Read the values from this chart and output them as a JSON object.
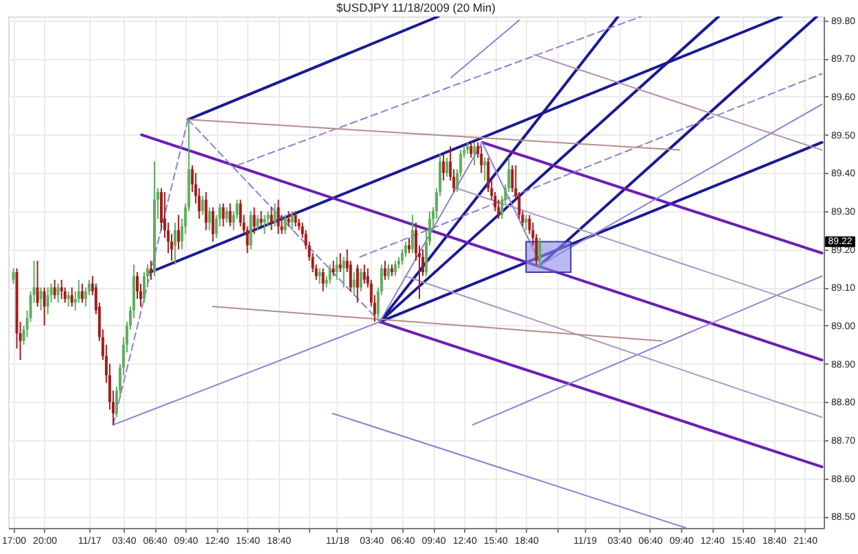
{
  "chart_data": {
    "type": "candlestick",
    "title": "$USDJPY  11/18/2009 (20 Min)",
    "x": [
      "2009-11-16T17:00",
      "2009-11-16T17:20",
      "2009-11-16T17:40",
      "2009-11-16T18:00",
      "2009-11-16T18:20",
      "2009-11-16T18:40",
      "2009-11-16T19:00",
      "2009-11-16T19:20",
      "2009-11-16T19:40",
      "2009-11-16T20:00",
      "2009-11-16T20:20",
      "2009-11-16T20:40",
      "2009-11-16T21:00",
      "2009-11-16T21:20",
      "2009-11-16T21:40",
      "2009-11-16T22:00",
      "2009-11-16T22:20",
      "2009-11-16T22:40",
      "2009-11-16T23:00",
      "2009-11-16T23:20",
      "2009-11-16T23:40",
      "2009-11-17T00:00",
      "2009-11-17T00:20",
      "2009-11-17T00:40",
      "2009-11-17T01:00",
      "2009-11-17T01:20",
      "2009-11-17T01:40",
      "2009-11-17T02:00",
      "2009-11-17T02:20",
      "2009-11-17T02:40",
      "2009-11-17T03:00",
      "2009-11-17T03:20",
      "2009-11-17T03:40",
      "2009-11-17T04:00",
      "2009-11-17T04:20",
      "2009-11-17T04:40",
      "2009-11-17T05:00",
      "2009-11-17T05:20",
      "2009-11-17T05:40",
      "2009-11-17T06:00",
      "2009-11-17T06:20",
      "2009-11-17T06:40",
      "2009-11-17T07:00",
      "2009-11-17T07:20",
      "2009-11-17T07:40",
      "2009-11-17T08:00",
      "2009-11-17T08:20",
      "2009-11-17T08:40",
      "2009-11-17T09:00",
      "2009-11-17T09:20",
      "2009-11-17T09:40",
      "2009-11-17T10:00",
      "2009-11-17T10:20",
      "2009-11-17T10:40",
      "2009-11-17T11:00",
      "2009-11-17T11:20",
      "2009-11-17T11:40",
      "2009-11-17T12:00",
      "2009-11-17T12:20",
      "2009-11-17T12:40",
      "2009-11-17T13:00",
      "2009-11-17T13:20",
      "2009-11-17T13:40",
      "2009-11-17T14:00",
      "2009-11-17T14:20",
      "2009-11-17T14:40",
      "2009-11-17T15:00",
      "2009-11-17T15:20",
      "2009-11-17T15:40",
      "2009-11-17T16:00",
      "2009-11-17T16:20",
      "2009-11-17T16:40",
      "2009-11-17T17:00",
      "2009-11-17T17:20",
      "2009-11-17T17:40",
      "2009-11-17T18:00",
      "2009-11-17T18:20",
      "2009-11-17T18:40",
      "2009-11-17T19:00",
      "2009-11-17T19:20",
      "2009-11-17T19:40",
      "2009-11-17T20:00",
      "2009-11-17T20:20",
      "2009-11-17T20:40",
      "2009-11-17T21:00",
      "2009-11-17T21:20",
      "2009-11-17T21:40",
      "2009-11-17T22:00",
      "2009-11-17T22:20",
      "2009-11-17T22:40",
      "2009-11-17T23:00",
      "2009-11-17T23:20",
      "2009-11-17T23:40",
      "2009-11-18T00:00",
      "2009-11-18T00:20",
      "2009-11-18T00:40",
      "2009-11-18T01:00",
      "2009-11-18T01:20",
      "2009-11-18T01:40",
      "2009-11-18T02:00",
      "2009-11-18T02:20",
      "2009-11-18T02:40",
      "2009-11-18T03:00",
      "2009-11-18T03:20",
      "2009-11-18T03:40",
      "2009-11-18T04:00",
      "2009-11-18T04:20",
      "2009-11-18T04:40",
      "2009-11-18T05:00",
      "2009-11-18T05:20",
      "2009-11-18T05:40",
      "2009-11-18T06:00",
      "2009-11-18T06:20",
      "2009-11-18T06:40",
      "2009-11-18T07:00",
      "2009-11-18T07:20",
      "2009-11-18T07:40",
      "2009-11-18T08:00",
      "2009-11-18T08:20",
      "2009-11-18T08:40",
      "2009-11-18T09:00",
      "2009-11-18T09:20",
      "2009-11-18T09:40",
      "2009-11-18T10:00",
      "2009-11-18T10:20",
      "2009-11-18T10:40",
      "2009-11-18T11:00",
      "2009-11-18T11:20",
      "2009-11-18T11:40",
      "2009-11-18T12:00",
      "2009-11-18T12:20",
      "2009-11-18T12:40",
      "2009-11-18T13:00",
      "2009-11-18T13:20",
      "2009-11-18T13:40",
      "2009-11-18T14:00",
      "2009-11-18T14:20",
      "2009-11-18T14:40",
      "2009-11-18T15:00",
      "2009-11-18T15:20",
      "2009-11-18T15:40",
      "2009-11-18T16:00",
      "2009-11-18T16:20",
      "2009-11-18T16:40",
      "2009-11-18T17:00",
      "2009-11-18T17:20",
      "2009-11-18T17:40",
      "2009-11-18T18:00",
      "2009-11-18T18:20",
      "2009-11-18T18:40",
      "2009-11-18T19:00",
      "2009-11-18T19:20",
      "2009-11-18T19:40",
      "2009-11-18T20:00"
    ],
    "ohlc": [
      [
        89.12,
        89.15,
        89.11,
        89.14
      ],
      [
        89.14,
        89.15,
        88.94,
        88.98
      ],
      [
        88.98,
        89.01,
        88.91,
        88.96
      ],
      [
        88.96,
        89.0,
        88.95,
        88.99
      ],
      [
        88.99,
        89.04,
        88.97,
        89.02
      ],
      [
        89.02,
        89.09,
        89.01,
        89.08
      ],
      [
        89.08,
        89.17,
        89.06,
        89.1
      ],
      [
        89.1,
        89.17,
        89.05,
        89.06
      ],
      [
        89.07,
        89.1,
        89.04,
        89.09
      ],
      [
        89.09,
        89.1,
        89.0,
        89.05
      ],
      [
        89.05,
        89.1,
        89.03,
        89.08
      ],
      [
        89.08,
        89.11,
        89.06,
        89.1
      ],
      [
        89.1,
        89.12,
        89.07,
        89.08
      ],
      [
        89.08,
        89.11,
        89.06,
        89.1
      ],
      [
        89.1,
        89.12,
        89.07,
        89.09
      ],
      [
        89.09,
        89.1,
        89.06,
        89.07
      ],
      [
        89.07,
        89.09,
        89.05,
        89.08
      ],
      [
        89.08,
        89.1,
        89.05,
        89.06
      ],
      [
        89.06,
        89.09,
        89.04,
        89.07
      ],
      [
        89.07,
        89.12,
        89.06,
        89.09
      ],
      [
        89.09,
        89.11,
        89.06,
        89.07
      ],
      [
        89.07,
        89.1,
        89.05,
        89.09
      ],
      [
        89.09,
        89.12,
        89.08,
        89.11
      ],
      [
        89.11,
        89.13,
        89.08,
        89.09
      ],
      [
        89.1,
        89.11,
        89.03,
        89.04
      ],
      [
        89.05,
        89.06,
        88.96,
        88.97
      ],
      [
        88.97,
        88.99,
        88.91,
        88.92
      ],
      [
        88.92,
        88.95,
        88.85,
        88.87
      ],
      [
        88.87,
        88.9,
        88.78,
        88.8
      ],
      [
        88.8,
        88.83,
        88.74,
        88.77
      ],
      [
        88.77,
        88.84,
        88.76,
        88.83
      ],
      [
        88.83,
        88.9,
        88.81,
        88.89
      ],
      [
        88.89,
        88.97,
        88.87,
        88.95
      ],
      [
        88.95,
        89.01,
        88.93,
        89.0
      ],
      [
        89.0,
        89.05,
        88.99,
        89.04
      ],
      [
        89.04,
        89.16,
        89.02,
        89.13
      ],
      [
        89.13,
        89.14,
        89.07,
        89.09
      ],
      [
        89.09,
        89.11,
        89.05,
        89.07
      ],
      [
        89.07,
        89.14,
        89.06,
        89.13
      ],
      [
        89.13,
        89.16,
        89.1,
        89.15
      ],
      [
        89.15,
        89.17,
        89.12,
        89.14
      ],
      [
        89.14,
        89.43,
        89.13,
        89.33
      ],
      [
        89.33,
        89.36,
        89.28,
        89.35
      ],
      [
        89.35,
        89.36,
        89.25,
        89.27
      ],
      [
        89.28,
        89.35,
        89.23,
        89.25
      ],
      [
        89.25,
        89.27,
        89.19,
        89.22
      ],
      [
        89.22,
        89.24,
        89.17,
        89.2
      ],
      [
        89.21,
        89.27,
        89.16,
        89.25
      ],
      [
        89.25,
        89.29,
        89.2,
        89.22
      ],
      [
        89.22,
        89.28,
        89.2,
        89.26
      ],
      [
        89.26,
        89.32,
        89.24,
        89.31
      ],
      [
        89.31,
        89.54,
        89.3,
        89.41
      ],
      [
        89.41,
        89.42,
        89.35,
        89.37
      ],
      [
        89.37,
        89.4,
        89.32,
        89.34
      ],
      [
        89.34,
        89.36,
        89.28,
        89.3
      ],
      [
        89.3,
        89.34,
        89.29,
        89.33
      ],
      [
        89.33,
        89.35,
        89.25,
        89.27
      ],
      [
        89.27,
        89.31,
        89.25,
        89.3
      ],
      [
        89.3,
        89.31,
        89.22,
        89.24
      ],
      [
        89.24,
        89.29,
        89.23,
        89.28
      ],
      [
        89.28,
        89.32,
        89.26,
        89.31
      ],
      [
        89.31,
        89.32,
        89.26,
        89.28
      ],
      [
        89.28,
        89.31,
        89.27,
        89.3
      ],
      [
        89.3,
        89.32,
        89.26,
        89.27
      ],
      [
        89.27,
        89.3,
        89.25,
        89.29
      ],
      [
        89.29,
        89.33,
        89.28,
        89.32
      ],
      [
        89.32,
        89.33,
        89.26,
        89.27
      ],
      [
        89.27,
        89.29,
        89.24,
        89.25
      ],
      [
        89.25,
        89.26,
        89.19,
        89.21
      ],
      [
        89.21,
        89.3,
        89.2,
        89.29
      ],
      [
        89.29,
        89.31,
        89.24,
        89.26
      ],
      [
        89.26,
        89.29,
        89.25,
        89.28
      ],
      [
        89.28,
        89.3,
        89.26,
        89.27
      ],
      [
        89.27,
        89.29,
        89.24,
        89.28
      ],
      [
        89.28,
        89.3,
        89.26,
        89.29
      ],
      [
        89.29,
        89.31,
        89.25,
        89.27
      ],
      [
        89.27,
        89.32,
        89.26,
        89.3
      ],
      [
        89.31,
        89.33,
        89.24,
        89.26
      ],
      [
        89.26,
        89.29,
        89.24,
        89.25
      ],
      [
        89.25,
        89.29,
        89.24,
        89.28
      ],
      [
        89.28,
        89.3,
        89.26,
        89.27
      ],
      [
        89.27,
        89.3,
        89.25,
        89.29
      ],
      [
        89.29,
        89.3,
        89.26,
        89.27
      ],
      [
        89.27,
        89.28,
        89.25,
        89.26
      ],
      [
        89.26,
        89.27,
        89.23,
        89.24
      ],
      [
        89.24,
        89.25,
        89.2,
        89.21
      ],
      [
        89.21,
        89.22,
        89.17,
        89.18
      ],
      [
        89.18,
        89.19,
        89.14,
        89.15
      ],
      [
        89.15,
        89.16,
        89.12,
        89.13
      ],
      [
        89.13,
        89.15,
        89.11,
        89.14
      ],
      [
        89.14,
        89.15,
        89.09,
        89.11
      ],
      [
        89.11,
        89.13,
        89.1,
        89.12
      ],
      [
        89.12,
        89.16,
        89.11,
        89.15
      ],
      [
        89.15,
        89.17,
        89.13,
        89.14
      ],
      [
        89.14,
        89.18,
        89.12,
        89.16
      ],
      [
        89.16,
        89.19,
        89.14,
        89.15
      ],
      [
        89.15,
        89.18,
        89.1,
        89.17
      ],
      [
        89.17,
        89.2,
        89.14,
        89.15
      ],
      [
        89.16,
        89.17,
        89.09,
        89.1
      ],
      [
        89.1,
        89.14,
        89.08,
        89.12
      ],
      [
        89.15,
        89.16,
        89.06,
        89.1
      ],
      [
        89.1,
        89.15,
        89.09,
        89.14
      ],
      [
        89.14,
        89.16,
        89.11,
        89.12
      ],
      [
        89.13,
        89.15,
        89.1,
        89.11
      ],
      [
        89.11,
        89.12,
        89.05,
        89.06
      ],
      [
        89.06,
        89.08,
        89.01,
        89.03
      ],
      [
        89.03,
        89.1,
        89.02,
        89.09
      ],
      [
        89.09,
        89.16,
        89.08,
        89.15
      ],
      [
        89.15,
        89.17,
        89.12,
        89.13
      ],
      [
        89.13,
        89.16,
        89.12,
        89.15
      ],
      [
        89.15,
        89.16,
        89.13,
        89.14
      ],
      [
        89.14,
        89.17,
        89.13,
        89.16
      ],
      [
        89.16,
        89.18,
        89.15,
        89.17
      ],
      [
        89.17,
        89.2,
        89.16,
        89.19
      ],
      [
        89.19,
        89.22,
        89.18,
        89.21
      ],
      [
        89.21,
        89.23,
        89.19,
        89.2
      ],
      [
        89.2,
        89.29,
        89.19,
        89.25
      ],
      [
        89.25,
        89.27,
        89.17,
        89.19
      ],
      [
        89.19,
        89.21,
        89.07,
        89.18
      ],
      [
        89.18,
        89.2,
        89.13,
        89.14
      ],
      [
        89.14,
        89.25,
        89.13,
        89.22
      ],
      [
        89.22,
        89.3,
        89.21,
        89.28
      ],
      [
        89.28,
        89.31,
        89.25,
        89.3
      ],
      [
        89.3,
        89.36,
        89.28,
        89.35
      ],
      [
        89.35,
        89.45,
        89.34,
        89.43
      ],
      [
        89.43,
        89.45,
        89.38,
        89.4
      ],
      [
        89.4,
        89.44,
        89.39,
        89.43
      ],
      [
        89.43,
        89.47,
        89.38,
        89.39
      ],
      [
        89.39,
        89.41,
        89.35,
        89.36
      ],
      [
        89.36,
        89.41,
        89.35,
        89.4
      ],
      [
        89.4,
        89.46,
        89.39,
        89.45
      ],
      [
        89.45,
        89.47,
        89.44,
        89.46
      ],
      [
        89.46,
        89.48,
        89.45,
        89.47
      ],
      [
        89.47,
        89.48,
        89.44,
        89.45
      ],
      [
        89.45,
        89.48,
        89.42,
        89.47
      ],
      [
        89.47,
        89.48,
        89.44,
        89.45
      ],
      [
        89.45,
        89.47,
        89.4,
        89.42
      ],
      [
        89.42,
        89.44,
        89.38,
        89.43
      ],
      [
        89.43,
        89.44,
        89.35,
        89.36
      ],
      [
        89.36,
        89.38,
        89.33,
        89.34
      ],
      [
        89.34,
        89.35,
        89.3,
        89.31
      ],
      [
        89.31,
        89.33,
        89.28,
        89.29
      ],
      [
        89.29,
        89.34,
        89.28,
        89.33
      ],
      [
        89.33,
        89.37,
        89.32,
        89.36
      ],
      [
        89.36,
        89.44,
        89.35,
        89.41
      ],
      [
        89.41,
        89.42,
        89.35,
        89.36
      ],
      [
        89.36,
        89.42,
        89.33,
        89.34
      ],
      [
        89.34,
        89.35,
        89.28,
        89.29
      ],
      [
        89.29,
        89.3,
        89.26,
        89.27
      ],
      [
        89.27,
        89.29,
        89.25,
        89.28
      ],
      [
        89.28,
        89.29,
        89.24,
        89.25
      ],
      [
        89.25,
        89.27,
        89.21,
        89.23
      ],
      [
        89.23,
        89.24,
        89.16,
        89.17
      ],
      [
        89.17,
        89.23,
        89.15,
        89.22
      ]
    ],
    "colors": [
      "#5fae5f",
      "#a41c1c",
      "#a41c1c",
      "#5fae5f",
      "#5fae5f",
      "#5fae5f",
      "#5fae5f",
      "#a41c1c",
      "#5fae5f",
      "#a41c1c",
      "#5fae5f",
      "#5fae5f",
      "#a41c1c",
      "#5fae5f",
      "#a41c1c",
      "#a41c1c",
      "#5fae5f",
      "#a41c1c",
      "#5fae5f",
      "#5fae5f",
      "#a41c1c",
      "#5fae5f",
      "#5fae5f",
      "#a41c1c",
      "#a41c1c",
      "#a41c1c",
      "#a41c1c",
      "#a41c1c",
      "#a41c1c",
      "#a41c1c",
      "#5fae5f",
      "#5fae5f",
      "#5fae5f",
      "#5fae5f",
      "#5fae5f",
      "#5fae5f",
      "#a41c1c",
      "#a41c1c",
      "#5fae5f",
      "#5fae5f",
      "#a41c1c",
      "#5fae5f",
      "#5fae5f",
      "#a41c1c",
      "#a41c1c",
      "#a41c1c",
      "#a41c1c",
      "#5fae5f",
      "#a41c1c",
      "#5fae5f",
      "#5fae5f",
      "#5fae5f",
      "#a41c1c",
      "#a41c1c",
      "#a41c1c",
      "#5fae5f",
      "#a41c1c",
      "#5fae5f",
      "#a41c1c",
      "#5fae5f",
      "#5fae5f",
      "#a41c1c",
      "#5fae5f",
      "#a41c1c",
      "#5fae5f",
      "#5fae5f",
      "#a41c1c",
      "#a41c1c",
      "#a41c1c",
      "#5fae5f",
      "#a41c1c",
      "#5fae5f",
      "#a41c1c",
      "#5fae5f",
      "#5fae5f",
      "#a41c1c",
      "#5fae5f",
      "#a41c1c",
      "#a41c1c",
      "#5fae5f",
      "#a41c1c",
      "#5fae5f",
      "#a41c1c",
      "#a41c1c",
      "#a41c1c",
      "#a41c1c",
      "#a41c1c",
      "#a41c1c",
      "#a41c1c",
      "#5fae5f",
      "#a41c1c",
      "#5fae5f",
      "#5fae5f",
      "#a41c1c",
      "#5fae5f",
      "#a41c1c",
      "#5fae5f",
      "#a41c1c",
      "#a41c1c",
      "#5fae5f",
      "#a41c1c",
      "#5fae5f",
      "#a41c1c",
      "#a41c1c",
      "#a41c1c",
      "#a41c1c",
      "#5fae5f",
      "#5fae5f",
      "#a41c1c",
      "#5fae5f",
      "#a41c1c",
      "#5fae5f",
      "#5fae5f",
      "#5fae5f",
      "#5fae5f",
      "#a41c1c",
      "#5fae5f",
      "#a41c1c",
      "#a41c1c",
      "#a41c1c",
      "#5fae5f",
      "#5fae5f",
      "#5fae5f",
      "#5fae5f",
      "#5fae5f",
      "#a41c1c",
      "#5fae5f",
      "#a41c1c",
      "#a41c1c",
      "#5fae5f",
      "#5fae5f",
      "#5fae5f",
      "#5fae5f",
      "#a41c1c",
      "#5fae5f",
      "#a41c1c",
      "#a41c1c",
      "#5fae5f",
      "#a41c1c",
      "#a41c1c",
      "#a41c1c",
      "#a41c1c",
      "#5fae5f",
      "#5fae5f",
      "#5fae5f",
      "#a41c1c",
      "#a41c1c",
      "#a41c1c",
      "#a41c1c",
      "#5fae5f",
      "#a41c1c",
      "#a41c1c",
      "#a41c1c",
      "#5fae5f"
    ],
    "series": [
      {
        "type": "line",
        "color": "#1a1a96",
        "x": [
          "2009-11-17T09:55",
          "2009-11-18T10:10"
        ],
        "values": [
          89.54,
          89.81
        ]
      },
      {
        "type": "line",
        "color": "#1a1a96",
        "x": [
          "2009-11-17T06:15",
          "2009-11-19T19:25"
        ],
        "values": [
          89.14,
          89.81
        ]
      },
      {
        "type": "line",
        "color": "#1a1a96",
        "x": [
          "2009-11-18T04:30",
          "2009-11-19T23:20"
        ],
        "values": [
          89.01,
          89.48
        ]
      },
      {
        "type": "line",
        "color": "#1a1a96",
        "x": [
          "2009-11-18T04:30",
          "2009-11-19T03:35"
        ],
        "values": [
          89.01,
          89.81
        ]
      },
      {
        "type": "line",
        "color": "#1a1a96",
        "x": [
          "2009-11-18T04:30",
          "2009-11-19T13:20"
        ],
        "values": [
          89.01,
          89.81
        ]
      },
      {
        "type": "line",
        "color": "#1a1a96",
        "x": [
          "2009-11-18T20:05",
          "2009-11-19T22:50"
        ],
        "values": [
          89.16,
          89.81
        ]
      },
      {
        "type": "line",
        "color": "#6a1fb5",
        "x": [
          "2009-11-17T05:25",
          "2009-11-19T23:20"
        ],
        "values": [
          89.5,
          88.91
        ]
      },
      {
        "type": "line",
        "color": "#6a1fb5",
        "x": [
          "2009-11-18T14:25",
          "2009-11-19T23:20"
        ],
        "values": [
          89.48,
          89.19
        ]
      },
      {
        "type": "line",
        "color": "#6a1fb5",
        "x": [
          "2009-11-18T04:30",
          "2009-11-19T23:20"
        ],
        "values": [
          89.01,
          88.63
        ]
      },
      {
        "type": "line",
        "color": "#8a80d8",
        "line_style": "dashed",
        "x": [
          "2009-11-17T02:40",
          "2009-11-17T09:55"
        ],
        "values": [
          88.74,
          89.54
        ]
      },
      {
        "type": "line",
        "color": "#8a80d8",
        "x": [
          "2009-11-17T02:40",
          "2009-11-18T04:30"
        ],
        "values": [
          88.74,
          89.01
        ]
      },
      {
        "type": "line",
        "color": "#8a80d8",
        "line_style": "dashed",
        "x": [
          "2009-11-17T09:55",
          "2009-11-18T04:30"
        ],
        "values": [
          89.54,
          89.01
        ]
      },
      {
        "type": "line",
        "color": "#8a80d8",
        "x": [
          "2009-11-18T04:30",
          "2009-11-18T14:25"
        ],
        "values": [
          89.01,
          89.48
        ]
      },
      {
        "type": "line",
        "color": "#8a80d8",
        "x": [
          "2009-11-18T14:25",
          "2009-11-18T20:05"
        ],
        "values": [
          89.48,
          89.16
        ]
      },
      {
        "type": "line",
        "color": "#8a80d8",
        "x": [
          "2009-11-17T23:55",
          "2009-11-19T10:10"
        ],
        "values": [
          88.77,
          88.47
        ]
      },
      {
        "type": "line",
        "color": "#8a80d8",
        "x": [
          "2009-11-18T13:30",
          "2009-11-19T23:20"
        ],
        "values": [
          88.74,
          89.13
        ]
      },
      {
        "type": "line",
        "color": "#8a80d8",
        "line_style": "dashed",
        "x": [
          "2009-11-17T14:40",
          "2009-11-19T05:50"
        ],
        "values": [
          89.42,
          89.81
        ]
      },
      {
        "type": "line",
        "color": "#8a80d8",
        "line_style": "dashed",
        "x": [
          "2009-11-18T02:35",
          "2009-11-19T23:20"
        ],
        "values": [
          89.18,
          89.66
        ]
      },
      {
        "type": "line",
        "color": "#8a80d8",
        "x": [
          "2009-11-18T20:05",
          "2009-11-19T23:20"
        ],
        "values": [
          89.16,
          89.58
        ]
      },
      {
        "type": "line",
        "color": "#8a80d8",
        "x": [
          "2009-11-18T11:25",
          "2009-11-18T18:00"
        ],
        "values": [
          89.65,
          89.8
        ]
      },
      {
        "type": "line",
        "color": "#a898c8",
        "x": [
          "2009-11-18T11:55",
          "2009-11-19T23:20"
        ],
        "values": [
          89.36,
          89.04
        ]
      },
      {
        "type": "line",
        "color": "#a898c8",
        "x": [
          "2009-11-18T06:55",
          "2009-11-19T23:20"
        ],
        "values": [
          89.13,
          88.76
        ]
      },
      {
        "type": "line",
        "color": "#b48cb4",
        "x": [
          "2009-11-18T19:25",
          "2009-11-19T23:20"
        ],
        "values": [
          89.71,
          89.46
        ]
      },
      {
        "type": "line",
        "color": "#b48c8c",
        "x": [
          "2009-11-17T09:55",
          "2009-11-19T09:30"
        ],
        "values": [
          89.54,
          89.46
        ]
      },
      {
        "type": "line",
        "color": "#b48c8c",
        "x": [
          "2009-11-17T12:20",
          "2009-11-19T07:50"
        ],
        "values": [
          89.05,
          88.96
        ]
      },
      {
        "type": "area",
        "color": "#8c8ce6",
        "x": [
          "2009-11-18T18:40",
          "2009-11-18T23:00"
        ],
        "values": [
          null,
          null
        ],
        "upper": [
          89.22,
          89.22
        ],
        "lower": [
          89.14,
          89.14
        ]
      }
    ],
    "annotations": [
      "89.22"
    ],
    "xlim": [
      "2009-11-16T16:30",
      "2009-11-19T23:30"
    ],
    "xticks": [
      {
        "value": "2009-11-16T17:00",
        "label": "17:00"
      },
      {
        "value": "2009-11-16T20:00",
        "label": "20:00"
      },
      {
        "value": "2009-11-17T00:20",
        "label": "11/17"
      },
      {
        "value": "2009-11-17T03:40",
        "label": "03:40"
      },
      {
        "value": "2009-11-17T06:40",
        "label": "06:40"
      },
      {
        "value": "2009-11-17T09:40",
        "label": "09:40"
      },
      {
        "value": "2009-11-17T12:40",
        "label": "12:40"
      },
      {
        "value": "2009-11-17T15:40",
        "label": "15:40"
      },
      {
        "value": "2009-11-17T18:40",
        "label": "18:40"
      },
      {
        "value": "2009-11-17T21:40",
        "label": null
      },
      {
        "value": "2009-11-18T00:20",
        "label": "11/18"
      },
      {
        "value": "2009-11-18T03:40",
        "label": "03:40"
      },
      {
        "value": "2009-11-18T06:40",
        "label": "06:40"
      },
      {
        "value": "2009-11-18T09:40",
        "label": "09:40"
      },
      {
        "value": "2009-11-18T12:40",
        "label": "12:40"
      },
      {
        "value": "2009-11-18T15:40",
        "label": "15:40"
      },
      {
        "value": "2009-11-18T18:40",
        "label": "18:40"
      },
      {
        "value": "2009-11-18T21:40",
        "label": null
      },
      {
        "value": "2009-11-19T00:20",
        "label": "11/19"
      },
      {
        "value": "2009-11-19T03:40",
        "label": "03:40"
      },
      {
        "value": "2009-11-19T06:40",
        "label": "06:40"
      },
      {
        "value": "2009-11-19T09:40",
        "label": "09:40"
      },
      {
        "value": "2009-11-19T12:40",
        "label": "12:40"
      },
      {
        "value": "2009-11-19T15:40",
        "label": "15:40"
      },
      {
        "value": "2009-11-19T18:40",
        "label": "18:40"
      },
      {
        "value": "2009-11-19T21:40",
        "label": "21:40"
      }
    ],
    "ylim": [
      88.47,
      89.81
    ],
    "yticks": [
      {
        "value": 88.5,
        "label": "88.50"
      },
      {
        "value": 88.6,
        "label": "88.60"
      },
      {
        "value": 88.7,
        "label": "88.70"
      },
      {
        "value": 88.8,
        "label": "88.80"
      },
      {
        "value": 88.9,
        "label": "88.90"
      },
      {
        "value": 89,
        "label": "89.00"
      },
      {
        "value": 89.1,
        "label": "89.10"
      },
      {
        "value": 89.2,
        "label": "89.20"
      },
      {
        "value": 89.3,
        "label": "89.30"
      },
      {
        "value": 89.4,
        "label": "89.40"
      },
      {
        "value": 89.5,
        "label": "89.50"
      },
      {
        "value": 89.6,
        "label": "89.60"
      },
      {
        "value": 89.7,
        "label": "89.70"
      },
      {
        "value": 89.8,
        "label": "89.80"
      }
    ],
    "grid": true
  }
}
